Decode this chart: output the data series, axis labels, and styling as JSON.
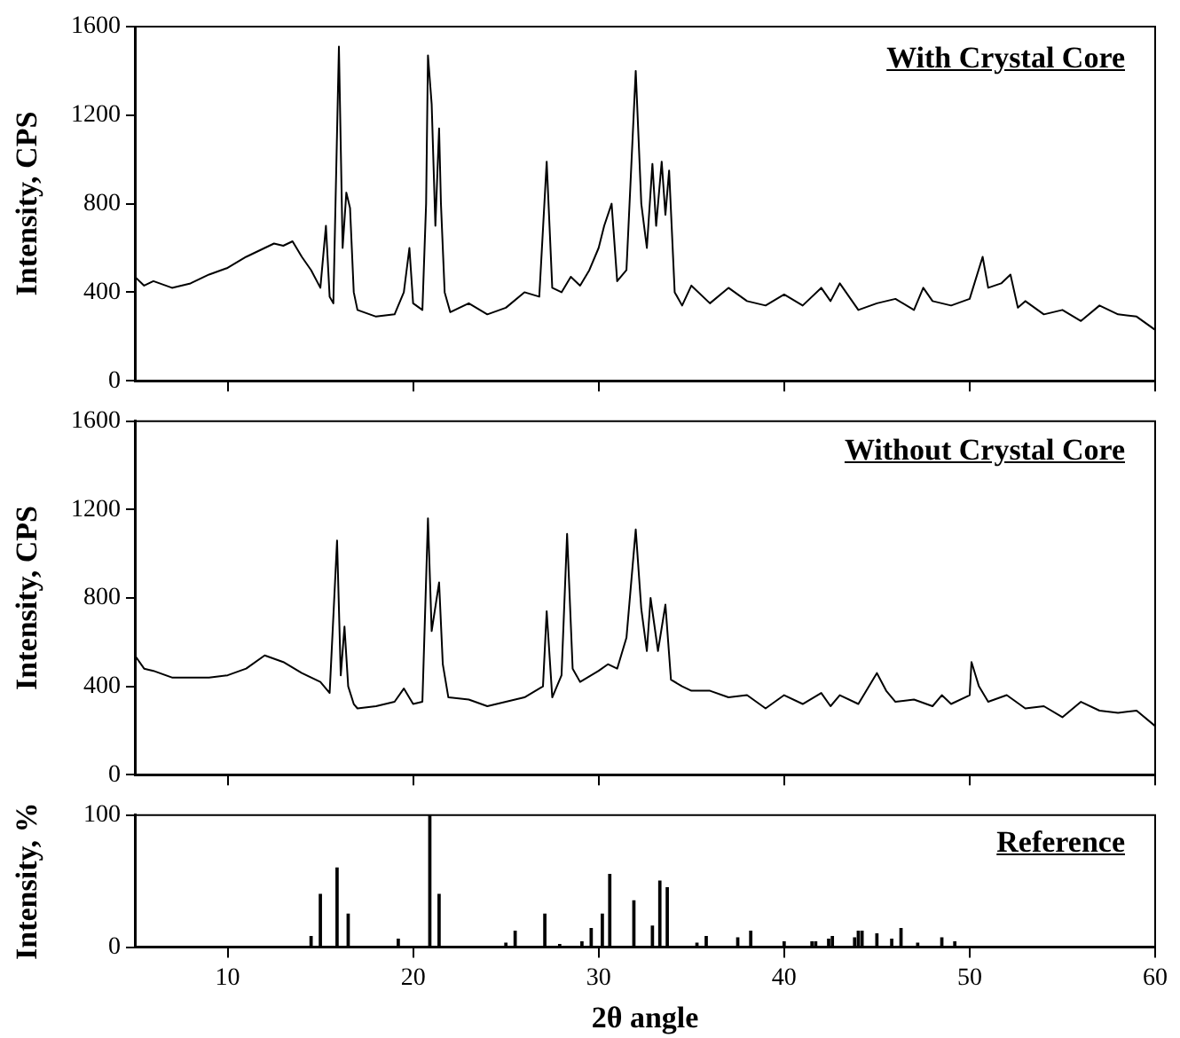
{
  "chart_data": [
    {
      "type": "line",
      "ylabel": "Intensity, CPS",
      "annotations": [
        "With Crystal Core"
      ],
      "xlim": [
        5,
        60
      ],
      "xticks": [
        10,
        20,
        30,
        40,
        50,
        60
      ],
      "ylim": [
        0,
        1600
      ],
      "yticks": [
        0,
        400,
        800,
        1200,
        1600
      ],
      "tick_labels": "y",
      "grid": false,
      "legend": false,
      "marker": "none",
      "line_style": "solid",
      "series": [
        {
          "color": "#000000",
          "x": [
            5,
            5.5,
            6,
            7,
            8,
            9,
            10,
            11,
            12,
            12.5,
            13,
            13.5,
            14,
            14.5,
            15,
            15.3,
            15.5,
            15.7,
            16,
            16.2,
            16.4,
            16.6,
            16.8,
            17,
            18,
            19,
            19.5,
            19.8,
            20,
            20.5,
            20.7,
            20.8,
            21,
            21.2,
            21.4,
            21.5,
            21.7,
            22,
            23,
            24,
            25,
            26,
            26.8,
            27.2,
            27.5,
            28,
            28.5,
            29,
            29.5,
            30,
            30.3,
            30.7,
            31,
            31.5,
            32,
            32.3,
            32.6,
            32.9,
            33.1,
            33.4,
            33.6,
            33.8,
            34.1,
            34.5,
            35,
            36,
            37,
            38,
            39,
            40,
            41,
            42,
            42.5,
            43,
            44,
            45,
            46,
            47,
            47.5,
            48,
            49,
            50,
            50.7,
            51,
            51.7,
            52.2,
            52.6,
            53,
            54,
            55,
            56,
            57,
            58,
            59,
            60
          ],
          "values": [
            470,
            430,
            450,
            420,
            440,
            480,
            510,
            560,
            600,
            620,
            610,
            630,
            560,
            500,
            420,
            700,
            380,
            350,
            1510,
            600,
            850,
            780,
            400,
            320,
            290,
            300,
            400,
            600,
            350,
            320,
            800,
            1470,
            1250,
            700,
            1140,
            800,
            400,
            310,
            350,
            300,
            330,
            400,
            380,
            990,
            420,
            400,
            470,
            430,
            500,
            600,
            700,
            800,
            450,
            500,
            1400,
            800,
            600,
            980,
            700,
            990,
            750,
            950,
            400,
            340,
            430,
            350,
            420,
            360,
            340,
            390,
            340,
            420,
            360,
            440,
            320,
            350,
            370,
            320,
            420,
            360,
            340,
            370,
            560,
            420,
            440,
            480,
            330,
            360,
            300,
            320,
            270,
            340,
            300,
            290,
            230
          ]
        }
      ]
    },
    {
      "type": "line",
      "ylabel": "Intensity, CPS",
      "annotations": [
        "Without Crystal Core"
      ],
      "xlim": [
        5,
        60
      ],
      "xticks": [
        10,
        20,
        30,
        40,
        50,
        60
      ],
      "ylim": [
        0,
        1600
      ],
      "yticks": [
        0,
        400,
        800,
        1200,
        1600
      ],
      "tick_labels": "y",
      "grid": false,
      "legend": false,
      "marker": "none",
      "line_style": "solid",
      "series": [
        {
          "color": "#000000",
          "x": [
            5,
            5.5,
            6,
            7,
            8,
            9,
            10,
            11,
            12,
            13,
            14,
            15,
            15.5,
            15.9,
            16.1,
            16.3,
            16.5,
            16.8,
            17,
            18,
            19,
            19.5,
            20,
            20.5,
            20.8,
            21,
            21.4,
            21.6,
            21.9,
            23,
            24,
            25,
            26,
            27,
            27.2,
            27.5,
            28,
            28.3,
            28.6,
            29,
            30,
            30.5,
            31,
            31.5,
            32,
            32.3,
            32.6,
            32.8,
            33.2,
            33.6,
            33.9,
            34.5,
            35,
            36,
            37,
            38,
            39,
            40,
            41,
            42,
            42.5,
            43,
            44,
            45,
            45.5,
            46,
            47,
            48,
            48.5,
            49,
            50,
            50.1,
            50.5,
            51,
            52,
            53,
            54,
            55,
            56,
            57,
            58,
            59,
            60
          ],
          "values": [
            540,
            480,
            470,
            440,
            440,
            440,
            450,
            480,
            540,
            510,
            460,
            420,
            370,
            1060,
            450,
            670,
            400,
            320,
            300,
            310,
            330,
            390,
            320,
            330,
            1160,
            650,
            870,
            500,
            350,
            340,
            310,
            330,
            350,
            400,
            740,
            350,
            450,
            1090,
            480,
            420,
            470,
            500,
            480,
            620,
            1110,
            750,
            560,
            800,
            560,
            770,
            430,
            400,
            380,
            380,
            350,
            360,
            300,
            360,
            320,
            370,
            310,
            360,
            320,
            460,
            380,
            330,
            340,
            310,
            360,
            320,
            360,
            510,
            400,
            330,
            360,
            300,
            310,
            260,
            330,
            290,
            280,
            290,
            220
          ]
        }
      ]
    },
    {
      "type": "bar",
      "ylabel": "Intensity, %",
      "xlabel": "2θ angle",
      "annotations": [
        "Reference"
      ],
      "xlim": [
        5,
        60
      ],
      "xticks": [
        10,
        20,
        30,
        40,
        50,
        60
      ],
      "ylim": [
        0,
        100
      ],
      "yticks": [
        0,
        100
      ],
      "grid": false,
      "legend": false,
      "series": [
        {
          "color": "#000000",
          "x": [
            14.5,
            15,
            15.9,
            16.5,
            19.2,
            20.9,
            21.4,
            25,
            25.5,
            27.1,
            27.9,
            29.1,
            29.6,
            30.2,
            30.6,
            31.9,
            32.9,
            33.3,
            33.7,
            35.3,
            35.8,
            37.5,
            38.2,
            40,
            41.5,
            41.7,
            42.4,
            42.6,
            43.8,
            44,
            44.2,
            45,
            45.8,
            46.3,
            47.2,
            48.5,
            49.2
          ],
          "values": [
            8,
            40,
            60,
            25,
            6,
            100,
            40,
            3,
            12,
            25,
            2,
            4,
            14,
            25,
            55,
            35,
            16,
            50,
            45,
            3,
            8,
            7,
            12,
            4,
            4,
            4,
            6,
            8,
            7,
            12,
            12,
            10,
            6,
            14,
            3,
            7,
            4
          ]
        }
      ]
    }
  ]
}
